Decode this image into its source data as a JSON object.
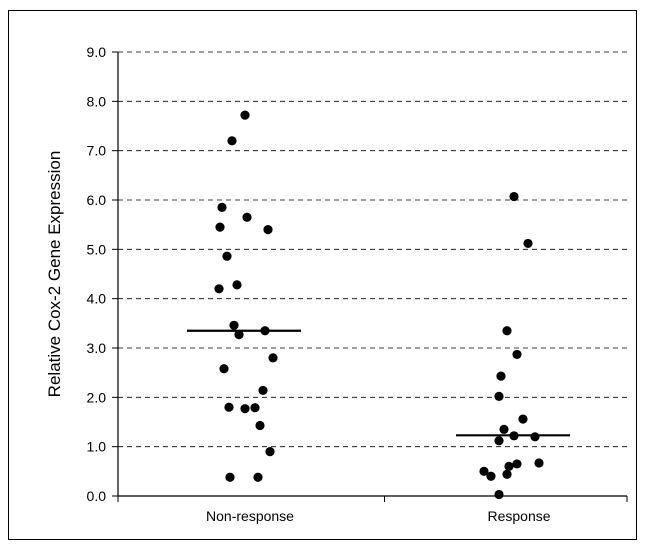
{
  "chart_data": {
    "type": "scatter",
    "title": "",
    "xlabel": "",
    "ylabel": "Relative Cox-2 Gene Expression",
    "ylim": [
      0,
      9
    ],
    "yticks": [
      "0.0",
      "1.0",
      "2.0",
      "3.0",
      "4.0",
      "5.0",
      "6.0",
      "7.0",
      "8.0",
      "9.0"
    ],
    "grid": "horizontal dashed",
    "categories": [
      "Non-response",
      "Response"
    ],
    "series": [
      {
        "values": [
          {
            "x": "Non-response",
            "y": 7.72
          },
          {
            "x": "Non-response",
            "y": 7.2
          },
          {
            "x": "Non-response",
            "y": 5.85
          },
          {
            "x": "Non-response",
            "y": 5.65
          },
          {
            "x": "Non-response",
            "y": 5.45
          },
          {
            "x": "Non-response",
            "y": 5.4
          },
          {
            "x": "Non-response",
            "y": 4.86
          },
          {
            "x": "Non-response",
            "y": 4.28
          },
          {
            "x": "Non-response",
            "y": 4.2
          },
          {
            "x": "Non-response",
            "y": 3.46
          },
          {
            "x": "Non-response",
            "y": 3.35
          },
          {
            "x": "Non-response",
            "y": 3.27
          },
          {
            "x": "Non-response",
            "y": 2.8
          },
          {
            "x": "Non-response",
            "y": 2.58
          },
          {
            "x": "Non-response",
            "y": 2.14
          },
          {
            "x": "Non-response",
            "y": 1.8
          },
          {
            "x": "Non-response",
            "y": 1.77
          },
          {
            "x": "Non-response",
            "y": 1.79
          },
          {
            "x": "Non-response",
            "y": 1.43
          },
          {
            "x": "Non-response",
            "y": 0.9
          },
          {
            "x": "Non-response",
            "y": 0.38
          },
          {
            "x": "Non-response",
            "y": 0.38
          },
          {
            "x": "Response",
            "y": 6.07
          },
          {
            "x": "Response",
            "y": 5.12
          },
          {
            "x": "Response",
            "y": 3.35
          },
          {
            "x": "Response",
            "y": 2.87
          },
          {
            "x": "Response",
            "y": 2.43
          },
          {
            "x": "Response",
            "y": 2.02
          },
          {
            "x": "Response",
            "y": 1.56
          },
          {
            "x": "Response",
            "y": 1.35
          },
          {
            "x": "Response",
            "y": 1.22
          },
          {
            "x": "Response",
            "y": 1.2
          },
          {
            "x": "Response",
            "y": 1.12
          },
          {
            "x": "Response",
            "y": 0.67
          },
          {
            "x": "Response",
            "y": 0.65
          },
          {
            "x": "Response",
            "y": 0.6
          },
          {
            "x": "Response",
            "y": 0.5
          },
          {
            "x": "Response",
            "y": 0.44
          },
          {
            "x": "Response",
            "y": 0.4
          },
          {
            "x": "Response",
            "y": 0.03
          }
        ]
      }
    ],
    "medians": [
      {
        "x": "Non-response",
        "y": 3.35
      },
      {
        "x": "Response",
        "y": 1.23
      }
    ]
  }
}
